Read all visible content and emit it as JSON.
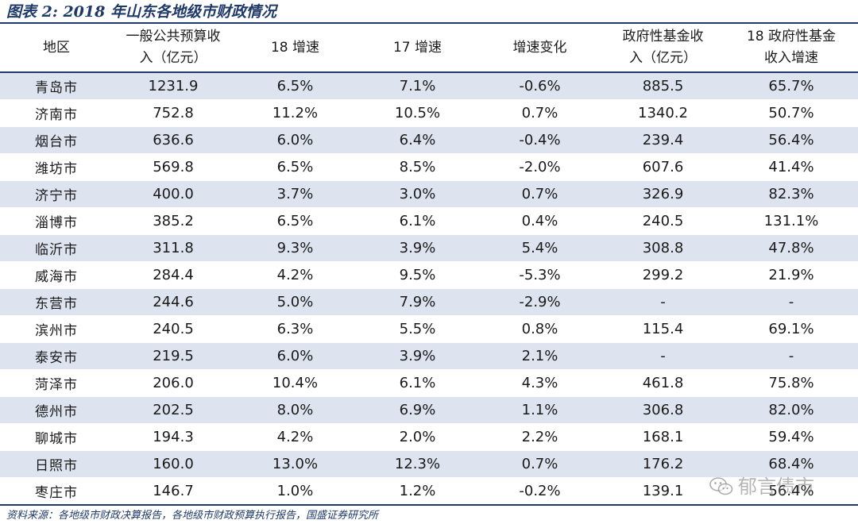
{
  "title": "图表 2:  2018 年山东各地级市财政情况",
  "table": {
    "headers": [
      {
        "line1": "地区",
        "line2": ""
      },
      {
        "line1": "一般公共预算收",
        "line2": "入（亿元）"
      },
      {
        "line1": "18 增速",
        "line2": ""
      },
      {
        "line1": "17 增速",
        "line2": ""
      },
      {
        "line1": "增速变化",
        "line2": ""
      },
      {
        "line1": "政府性基金收",
        "line2": "入（亿元）"
      },
      {
        "line1": "18 政府性基金",
        "line2": "收入增速"
      }
    ],
    "rows": [
      [
        "青岛市",
        "1231.9",
        "6.5%",
        "7.1%",
        "-0.6%",
        "885.5",
        "65.7%"
      ],
      [
        "济南市",
        "752.8",
        "11.2%",
        "10.5%",
        "0.7%",
        "1340.2",
        "50.7%"
      ],
      [
        "烟台市",
        "636.6",
        "6.0%",
        "6.4%",
        "-0.4%",
        "239.4",
        "56.4%"
      ],
      [
        "潍坊市",
        "569.8",
        "6.5%",
        "8.5%",
        "-2.0%",
        "607.6",
        "41.4%"
      ],
      [
        "济宁市",
        "400.0",
        "3.7%",
        "3.0%",
        "0.7%",
        "326.9",
        "82.3%"
      ],
      [
        "淄博市",
        "385.2",
        "6.5%",
        "6.1%",
        "0.4%",
        "240.5",
        "131.1%"
      ],
      [
        "临沂市",
        "311.8",
        "9.3%",
        "3.9%",
        "5.4%",
        "308.8",
        "47.8%"
      ],
      [
        "威海市",
        "284.4",
        "4.2%",
        "9.5%",
        "-5.3%",
        "299.2",
        "21.9%"
      ],
      [
        "东营市",
        "244.6",
        "5.0%",
        "7.9%",
        "-2.9%",
        "-",
        "-"
      ],
      [
        "滨州市",
        "240.5",
        "6.3%",
        "5.5%",
        "0.8%",
        "115.4",
        "69.1%"
      ],
      [
        "泰安市",
        "219.5",
        "6.0%",
        "3.9%",
        "2.1%",
        "-",
        "-"
      ],
      [
        "菏泽市",
        "206.0",
        "10.4%",
        "6.1%",
        "4.3%",
        "461.8",
        "75.8%"
      ],
      [
        "德州市",
        "202.5",
        "8.0%",
        "6.9%",
        "1.1%",
        "306.8",
        "82.0%"
      ],
      [
        "聊城市",
        "194.3",
        "4.2%",
        "2.0%",
        "2.2%",
        "168.1",
        "59.4%"
      ],
      [
        "日照市",
        "160.0",
        "13.0%",
        "12.3%",
        "0.7%",
        "176.2",
        "68.4%"
      ],
      [
        "枣庄市",
        "146.7",
        "1.0%",
        "1.2%",
        "-0.2%",
        "139.1",
        "56.4%"
      ]
    ]
  },
  "source": "资料来源：各地级市财政决算报告，各地级市财政预算执行报告，国盛证券研究所",
  "watermark": {
    "icon": "wechat-icon",
    "text": "郁言债市"
  }
}
